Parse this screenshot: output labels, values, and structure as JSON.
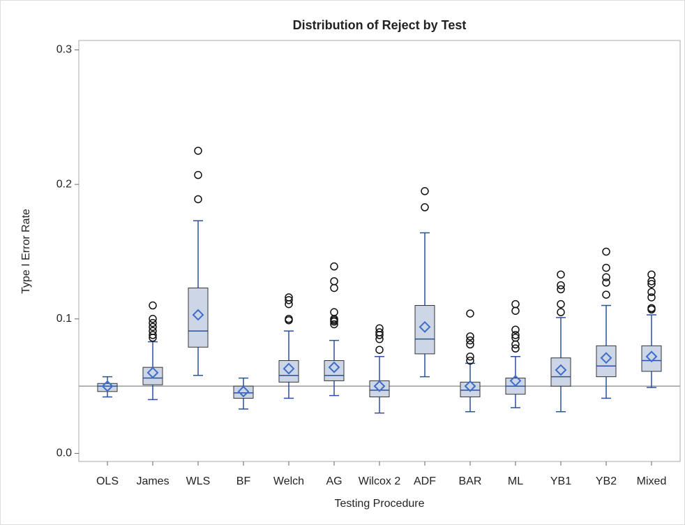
{
  "chart_data": {
    "type": "box",
    "title": "Distribution of Reject by Test",
    "x_label": "Testing Procedure",
    "y_label": "Type I Error Rate",
    "categories": [
      "OLS",
      "James",
      "WLS",
      "BF",
      "Welch",
      "AG",
      "Wilcox 2",
      "ADF",
      "BAR",
      "ML",
      "YB1",
      "YB2",
      "Mixed"
    ],
    "boxes": [
      {
        "low": 0.042,
        "q1": 0.046,
        "median": 0.05,
        "q3": 0.052,
        "high": 0.057,
        "mean": 0.05,
        "outliers": []
      },
      {
        "low": 0.04,
        "q1": 0.051,
        "median": 0.056,
        "q3": 0.064,
        "high": 0.083,
        "mean": 0.06,
        "outliers": [
          0.11,
          0.1,
          0.097,
          0.094,
          0.091,
          0.088,
          0.086
        ]
      },
      {
        "low": 0.058,
        "q1": 0.079,
        "median": 0.091,
        "q3": 0.123,
        "high": 0.173,
        "mean": 0.103,
        "outliers": [
          0.189,
          0.207,
          0.225
        ]
      },
      {
        "low": 0.033,
        "q1": 0.041,
        "median": 0.045,
        "q3": 0.05,
        "high": 0.056,
        "mean": 0.046,
        "outliers": []
      },
      {
        "low": 0.041,
        "q1": 0.053,
        "median": 0.058,
        "q3": 0.069,
        "high": 0.091,
        "mean": 0.063,
        "outliers": [
          0.099,
          0.1,
          0.111,
          0.114,
          0.116
        ]
      },
      {
        "low": 0.043,
        "q1": 0.054,
        "median": 0.058,
        "q3": 0.069,
        "high": 0.084,
        "mean": 0.064,
        "outliers": [
          0.096,
          0.098,
          0.099,
          0.1,
          0.105,
          0.123,
          0.128,
          0.139
        ]
      },
      {
        "low": 0.03,
        "q1": 0.042,
        "median": 0.047,
        "q3": 0.054,
        "high": 0.072,
        "mean": 0.05,
        "outliers": [
          0.077,
          0.085,
          0.088,
          0.09,
          0.093
        ]
      },
      {
        "low": 0.057,
        "q1": 0.074,
        "median": 0.085,
        "q3": 0.11,
        "high": 0.164,
        "mean": 0.094,
        "outliers": [
          0.183,
          0.195
        ]
      },
      {
        "low": 0.031,
        "q1": 0.042,
        "median": 0.047,
        "q3": 0.053,
        "high": 0.067,
        "mean": 0.05,
        "outliers": [
          0.069,
          0.072,
          0.081,
          0.084,
          0.087,
          0.104
        ]
      },
      {
        "low": 0.034,
        "q1": 0.044,
        "median": 0.05,
        "q3": 0.056,
        "high": 0.072,
        "mean": 0.054,
        "outliers": [
          0.078,
          0.081,
          0.086,
          0.088,
          0.092,
          0.106,
          0.111
        ]
      },
      {
        "low": 0.031,
        "q1": 0.05,
        "median": 0.057,
        "q3": 0.071,
        "high": 0.101,
        "mean": 0.062,
        "outliers": [
          0.105,
          0.111,
          0.122,
          0.125,
          0.133
        ]
      },
      {
        "low": 0.041,
        "q1": 0.057,
        "median": 0.065,
        "q3": 0.08,
        "high": 0.11,
        "mean": 0.071,
        "outliers": [
          0.118,
          0.127,
          0.131,
          0.138,
          0.15
        ]
      },
      {
        "low": 0.049,
        "q1": 0.061,
        "median": 0.069,
        "q3": 0.08,
        "high": 0.103,
        "mean": 0.072,
        "outliers": [
          0.107,
          0.108,
          0.116,
          0.12,
          0.126,
          0.128,
          0.133
        ]
      }
    ],
    "box_color": "#cdd6e6",
    "whisker_color": "#2a4fa0",
    "mean_color": "#3d6ec9",
    "reference_line": 0.05,
    "ylim": [
      -0.006,
      0.307
    ],
    "yticks": [
      {
        "value": 0,
        "label": "0.0"
      },
      0.1,
      0.2,
      0.3
    ]
  }
}
